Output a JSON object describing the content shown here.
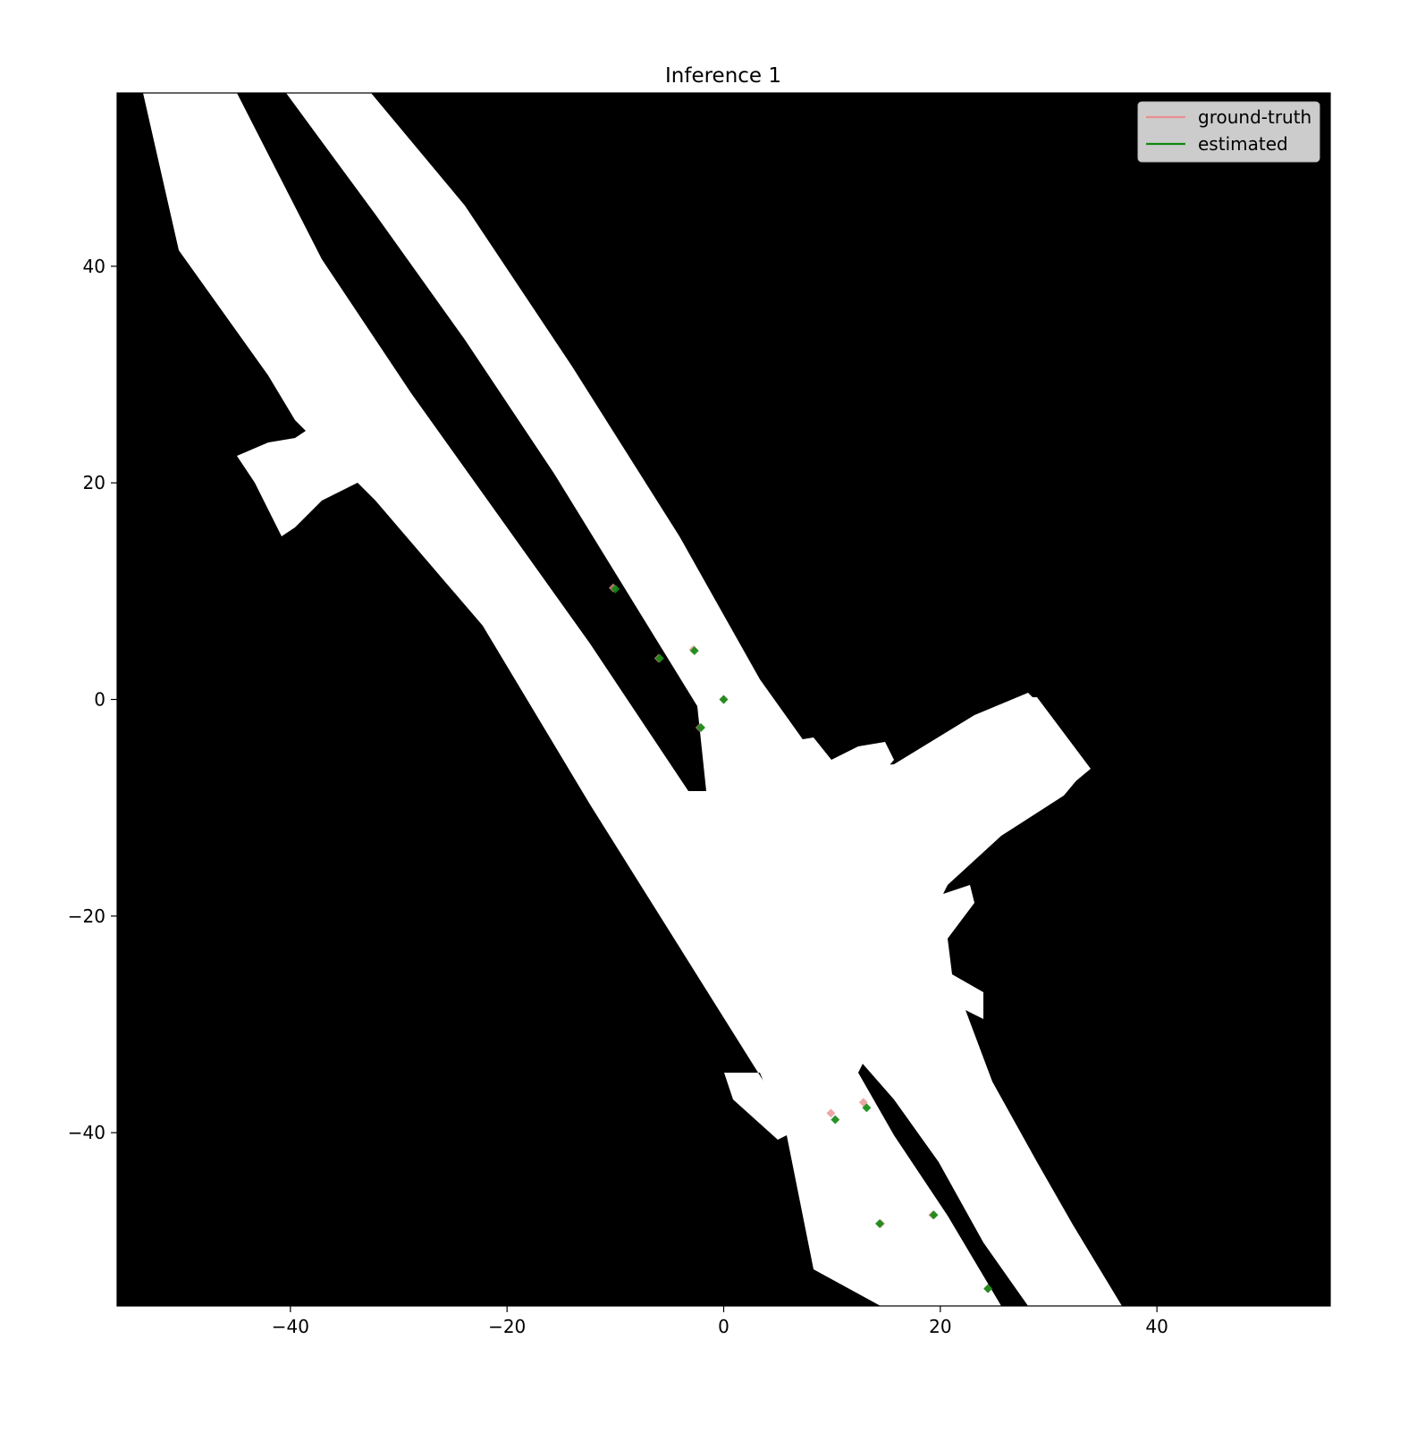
{
  "chart_data": {
    "type": "scatter",
    "title": "Inference 1",
    "xlabel": "",
    "ylabel": "",
    "xlim": [
      -56,
      56
    ],
    "ylim": [
      -56,
      56
    ],
    "xticks": [
      -40,
      -20,
      0,
      20,
      40
    ],
    "yticks": [
      40,
      20,
      0,
      -20,
      -40
    ],
    "xtick_labels": [
      "−40",
      "−20",
      "0",
      "20",
      "40"
    ],
    "ytick_labels": [
      "40",
      "20",
      "0",
      "−20",
      "−40"
    ],
    "grid": false,
    "legend_position": "top-right",
    "background": {
      "description_free_color": "#ffffff",
      "occupied_color": "#000000"
    },
    "series": [
      {
        "name": "ground-truth",
        "color": "#e8908f",
        "points": [
          {
            "x": -10.2,
            "y": 10.3
          },
          {
            "x": -6.0,
            "y": 3.8
          },
          {
            "x": -2.8,
            "y": 4.6
          },
          {
            "x": 0.0,
            "y": 0.0
          },
          {
            "x": -2.2,
            "y": -2.6
          },
          {
            "x": 9.9,
            "y": -38.2
          },
          {
            "x": 12.9,
            "y": -37.2
          },
          {
            "x": 14.5,
            "y": -48.4
          },
          {
            "x": 19.3,
            "y": -47.6
          },
          {
            "x": 24.4,
            "y": -54.4
          }
        ]
      },
      {
        "name": "estimated",
        "color": "#118811",
        "points": [
          {
            "x": -10.0,
            "y": 10.2
          },
          {
            "x": -5.9,
            "y": 3.8
          },
          {
            "x": -2.7,
            "y": 4.5
          },
          {
            "x": 0.0,
            "y": 0.0
          },
          {
            "x": -2.1,
            "y": -2.6
          },
          {
            "x": 10.3,
            "y": -38.8
          },
          {
            "x": 13.2,
            "y": -37.7
          },
          {
            "x": 14.4,
            "y": -48.4
          },
          {
            "x": 19.4,
            "y": -47.6
          },
          {
            "x": 24.4,
            "y": -54.4
          }
        ]
      }
    ]
  }
}
